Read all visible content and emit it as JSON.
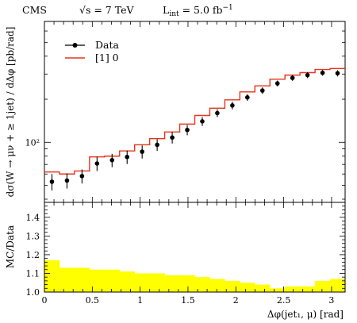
{
  "header": {
    "experiment": "CMS",
    "energy": "√s = 7 TeV",
    "luminosity": "L",
    "luminosity_sub": "int",
    "luminosity_value": " = 5.0 fb",
    "luminosity_sup": "−1"
  },
  "chart_data": [
    {
      "type": "line",
      "panel": "main",
      "ylabel": "dσ(W → μν + ≥ 1jet) / dΔφ [pb/rad]",
      "yscale": "log",
      "xlim": [
        0,
        3.1416
      ],
      "ylim": [
        38,
        700
      ],
      "y_tick_labels": [
        "10²"
      ],
      "legend": {
        "placement": "top-left",
        "entries": [
          "Data",
          "[1] 0"
        ]
      },
      "bin_edges": [
        0,
        0.1571,
        0.3142,
        0.4712,
        0.6283,
        0.7854,
        0.9425,
        1.0996,
        1.2566,
        1.4137,
        1.5708,
        1.7279,
        1.885,
        2.042,
        2.1991,
        2.3562,
        2.5133,
        2.6704,
        2.8274,
        2.9845,
        3.1416
      ],
      "series": [
        {
          "name": "Data",
          "style": "points",
          "color": "#000000",
          "x": [
            0.0785,
            0.2356,
            0.3927,
            0.5498,
            0.7069,
            0.864,
            1.021,
            1.1781,
            1.3352,
            1.4923,
            1.6493,
            1.8064,
            1.9635,
            2.1206,
            2.2777,
            2.4347,
            2.5918,
            2.7489,
            2.906,
            3.063
          ],
          "y": [
            53,
            54,
            58,
            71,
            75,
            79,
            86,
            96,
            108,
            122,
            140,
            160,
            181,
            206,
            230,
            258,
            282,
            295,
            306,
            304
          ],
          "yerr": [
            7,
            6.5,
            6.5,
            8,
            8,
            8.5,
            9,
            9,
            10,
            10,
            10,
            10,
            11,
            11,
            12,
            12,
            13,
            14,
            14,
            15
          ]
        },
        {
          "name": "[1] 0",
          "style": "histogram",
          "color": "#e8351d",
          "y": [
            62,
            60,
            63,
            79,
            80,
            87,
            96,
            106,
            118,
            134,
            154,
            173,
            198,
            225,
            248,
            276,
            295,
            307,
            323,
            328
          ]
        }
      ]
    },
    {
      "type": "area",
      "panel": "ratio",
      "ylabel": "MC/Data",
      "xlabel": "Δφ(jet₁, μ) [rad]",
      "xlim": [
        0,
        3.1416
      ],
      "ylim": [
        1.0,
        1.48
      ],
      "x_ticks": [
        0,
        0.5,
        1,
        1.5,
        2,
        2.5,
        3
      ],
      "x_tick_labels": [
        "0",
        "0.5",
        "1",
        "1.5",
        "2",
        "2.5",
        "3"
      ],
      "y_ticks": [
        1.0,
        1.1,
        1.2,
        1.3,
        1.4
      ],
      "y_tick_labels": [
        "1.0",
        "1.1",
        "1.2",
        "1.3",
        "1.4"
      ],
      "series": [
        {
          "style": "band",
          "color": "#ffff00",
          "lower": [
            1.0,
            1.0,
            1.0,
            1.0,
            1.0,
            1.0,
            1.0,
            1.0,
            1.0,
            1.0,
            1.0,
            1.0,
            1.0,
            1.0,
            1.0,
            1.0,
            1.0,
            1.0,
            1.0,
            1.0
          ],
          "upper": [
            1.17,
            1.13,
            1.13,
            1.12,
            1.12,
            1.11,
            1.1,
            1.1,
            1.09,
            1.09,
            1.08,
            1.07,
            1.06,
            1.05,
            1.04,
            1.02,
            1.03,
            1.03,
            1.06,
            1.07
          ]
        }
      ]
    }
  ]
}
